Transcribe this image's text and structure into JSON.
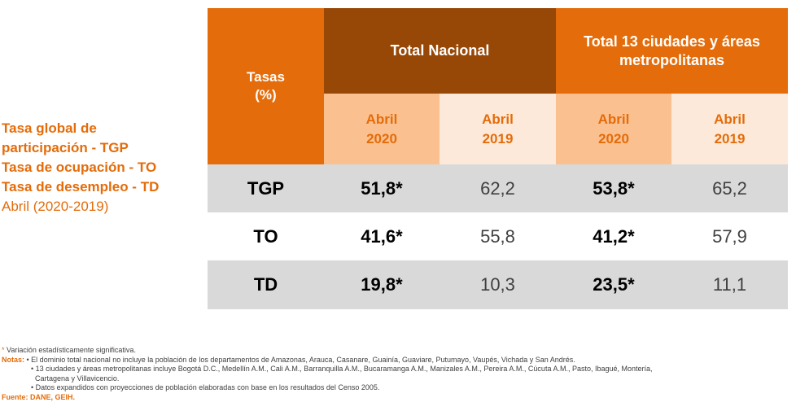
{
  "side": {
    "line1": "Tasa global de",
    "line2": "participación - TGP",
    "line3": "Tasa de ocupación - TO",
    "line4": "Tasa de desempleo - TD",
    "period": "Abril (2020-2019)"
  },
  "table": {
    "tasas_line1": "Tasas",
    "tasas_line2": "(%)",
    "group_nacional": "Total Nacional",
    "group_13_line1": "Total 13 ciudades y áreas",
    "group_13_line2": "metropolitanas",
    "sub": [
      {
        "month": "Abril",
        "year": "2020"
      },
      {
        "month": "Abril",
        "year": "2019"
      },
      {
        "month": "Abril",
        "year": "2020"
      },
      {
        "month": "Abril",
        "year": "2019"
      }
    ],
    "rows": [
      {
        "label": "TGP",
        "v1": "51,8*",
        "v2": "62,2",
        "v3": "53,8*",
        "v4": "65,2"
      },
      {
        "label": "TO",
        "v1": "41,6*",
        "v2": "55,8",
        "v3": "41,2*",
        "v4": "57,9"
      },
      {
        "label": "TD",
        "v1": "19,8*",
        "v2": "10,3",
        "v3": "23,5*",
        "v4": "11,1"
      }
    ]
  },
  "notes": {
    "asterisk": "*",
    "asterisk_text": "Variación estadísticamente significativa.",
    "notas_label": "Notas:",
    "note1": "• El dominio total nacional no incluye la población de los departamentos de Amazonas, Arauca, Casanare, Guainía, Guaviare, Putumayo, Vaupés, Vichada y San Andrés.",
    "note2a": "• 13 ciudades y áreas metropolitanas incluye Bogotá D.C., Medellín A.M., Cali A.M., Barranquilla A.M., Bucaramanga A.M., Manizales A.M., Pereira A.M., Cúcuta A.M., Pasto, Ibagué, Montería,",
    "note2b": "Cartagena y Villavicencio.",
    "note3": "• Datos expandidos con proyecciones de población elaboradas con base en los resultados del Censo 2005.",
    "fuente": "Fuente: DANE, GEIH."
  }
}
